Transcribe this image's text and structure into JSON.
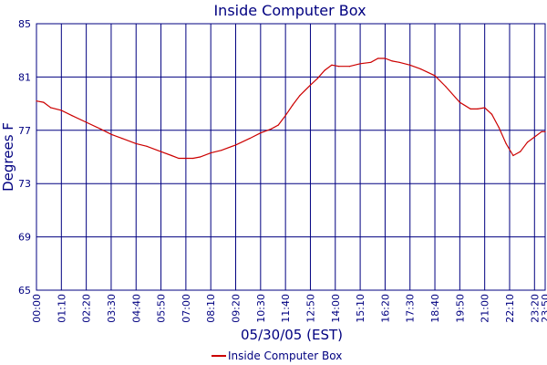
{
  "chart_data": {
    "type": "line",
    "title": "Inside Computer Box",
    "xlabel": "05/30/05 (EST)",
    "ylabel": "Degrees F",
    "ylim": [
      65,
      85
    ],
    "xlim": [
      "00:00",
      "23:50"
    ],
    "y_ticks": [
      "65",
      "69",
      "73",
      "77",
      "81",
      "85"
    ],
    "x_ticks": [
      "00:00",
      "01:10",
      "02:20",
      "03:30",
      "04:40",
      "05:50",
      "07:00",
      "08:10",
      "09:20",
      "10:30",
      "11:40",
      "12:50",
      "14:00",
      "15:10",
      "16:20",
      "17:30",
      "18:40",
      "19:50",
      "21:00",
      "22:10",
      "23:20",
      "23:50"
    ],
    "grid": true,
    "legend_position": "bottom",
    "series": [
      {
        "name": "Inside Computer Box",
        "color": "#cc0000",
        "x": [
          "00:00",
          "00:20",
          "00:40",
          "01:10",
          "01:40",
          "02:20",
          "03:00",
          "03:30",
          "04:00",
          "04:40",
          "05:10",
          "05:50",
          "06:20",
          "06:40",
          "07:00",
          "07:20",
          "07:40",
          "08:10",
          "08:40",
          "09:20",
          "10:00",
          "10:30",
          "11:00",
          "11:20",
          "11:40",
          "12:00",
          "12:20",
          "12:50",
          "13:10",
          "13:30",
          "13:50",
          "14:10",
          "14:40",
          "15:10",
          "15:40",
          "16:00",
          "16:20",
          "16:40",
          "17:00",
          "17:30",
          "18:00",
          "18:40",
          "19:10",
          "19:50",
          "20:20",
          "20:40",
          "21:00",
          "21:20",
          "21:40",
          "22:00",
          "22:20",
          "22:40",
          "23:00",
          "23:20",
          "23:40",
          "23:50"
        ],
        "y": [
          79.2,
          79.1,
          78.7,
          78.5,
          78.1,
          77.6,
          77.1,
          76.7,
          76.4,
          76.0,
          75.8,
          75.4,
          75.1,
          74.9,
          74.9,
          74.9,
          75.0,
          75.3,
          75.5,
          75.9,
          76.4,
          76.8,
          77.1,
          77.4,
          78.1,
          78.9,
          79.6,
          80.4,
          80.9,
          81.5,
          81.9,
          81.8,
          81.8,
          82.0,
          82.1,
          82.4,
          82.4,
          82.2,
          82.1,
          81.9,
          81.6,
          81.1,
          80.3,
          79.1,
          78.6,
          78.6,
          78.7,
          78.2,
          77.2,
          76.0,
          75.1,
          75.4,
          76.1,
          76.5,
          76.9,
          76.9
        ]
      }
    ]
  }
}
